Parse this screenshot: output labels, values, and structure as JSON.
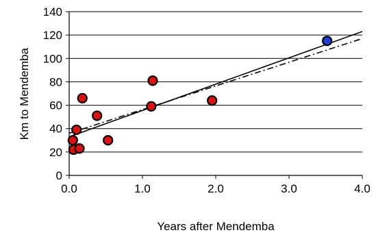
{
  "chart_data": {
    "type": "scatter",
    "title": "",
    "xlabel": "Years after Mendemba",
    "ylabel": "Km to Mendemba",
    "xlim": [
      0.0,
      4.0
    ],
    "ylim": [
      0,
      140
    ],
    "x_ticks": [
      0.0,
      1.0,
      2.0,
      3.0,
      4.0
    ],
    "x_tick_labels": [
      "0.0",
      "1.0",
      "2.0",
      "3.0",
      "4.0"
    ],
    "y_ticks": [
      0,
      20,
      40,
      60,
      80,
      100,
      120,
      140
    ],
    "y_tick_labels": [
      "0",
      "20",
      "40",
      "60",
      "80",
      "100",
      "120",
      "140"
    ],
    "grid": "horizontal",
    "series": [
      {
        "color": "#e01010",
        "points": [
          {
            "x": 0.05,
            "y": 30
          },
          {
            "x": 0.06,
            "y": 22
          },
          {
            "x": 0.1,
            "y": 39
          },
          {
            "x": 0.14,
            "y": 23
          },
          {
            "x": 0.18,
            "y": 66
          },
          {
            "x": 0.38,
            "y": 51
          },
          {
            "x": 0.53,
            "y": 30
          },
          {
            "x": 1.12,
            "y": 59
          },
          {
            "x": 1.14,
            "y": 81
          },
          {
            "x": 1.95,
            "y": 64
          }
        ]
      },
      {
        "color": "#1a3fd6",
        "points": [
          {
            "x": 3.52,
            "y": 115
          }
        ]
      }
    ],
    "lines": [
      {
        "style": "solid",
        "from": [
          0.0,
          33
        ],
        "to": [
          4.0,
          123
        ]
      },
      {
        "style": "dash-dot",
        "from": [
          0.0,
          36
        ],
        "to": [
          4.0,
          117
        ]
      }
    ]
  }
}
